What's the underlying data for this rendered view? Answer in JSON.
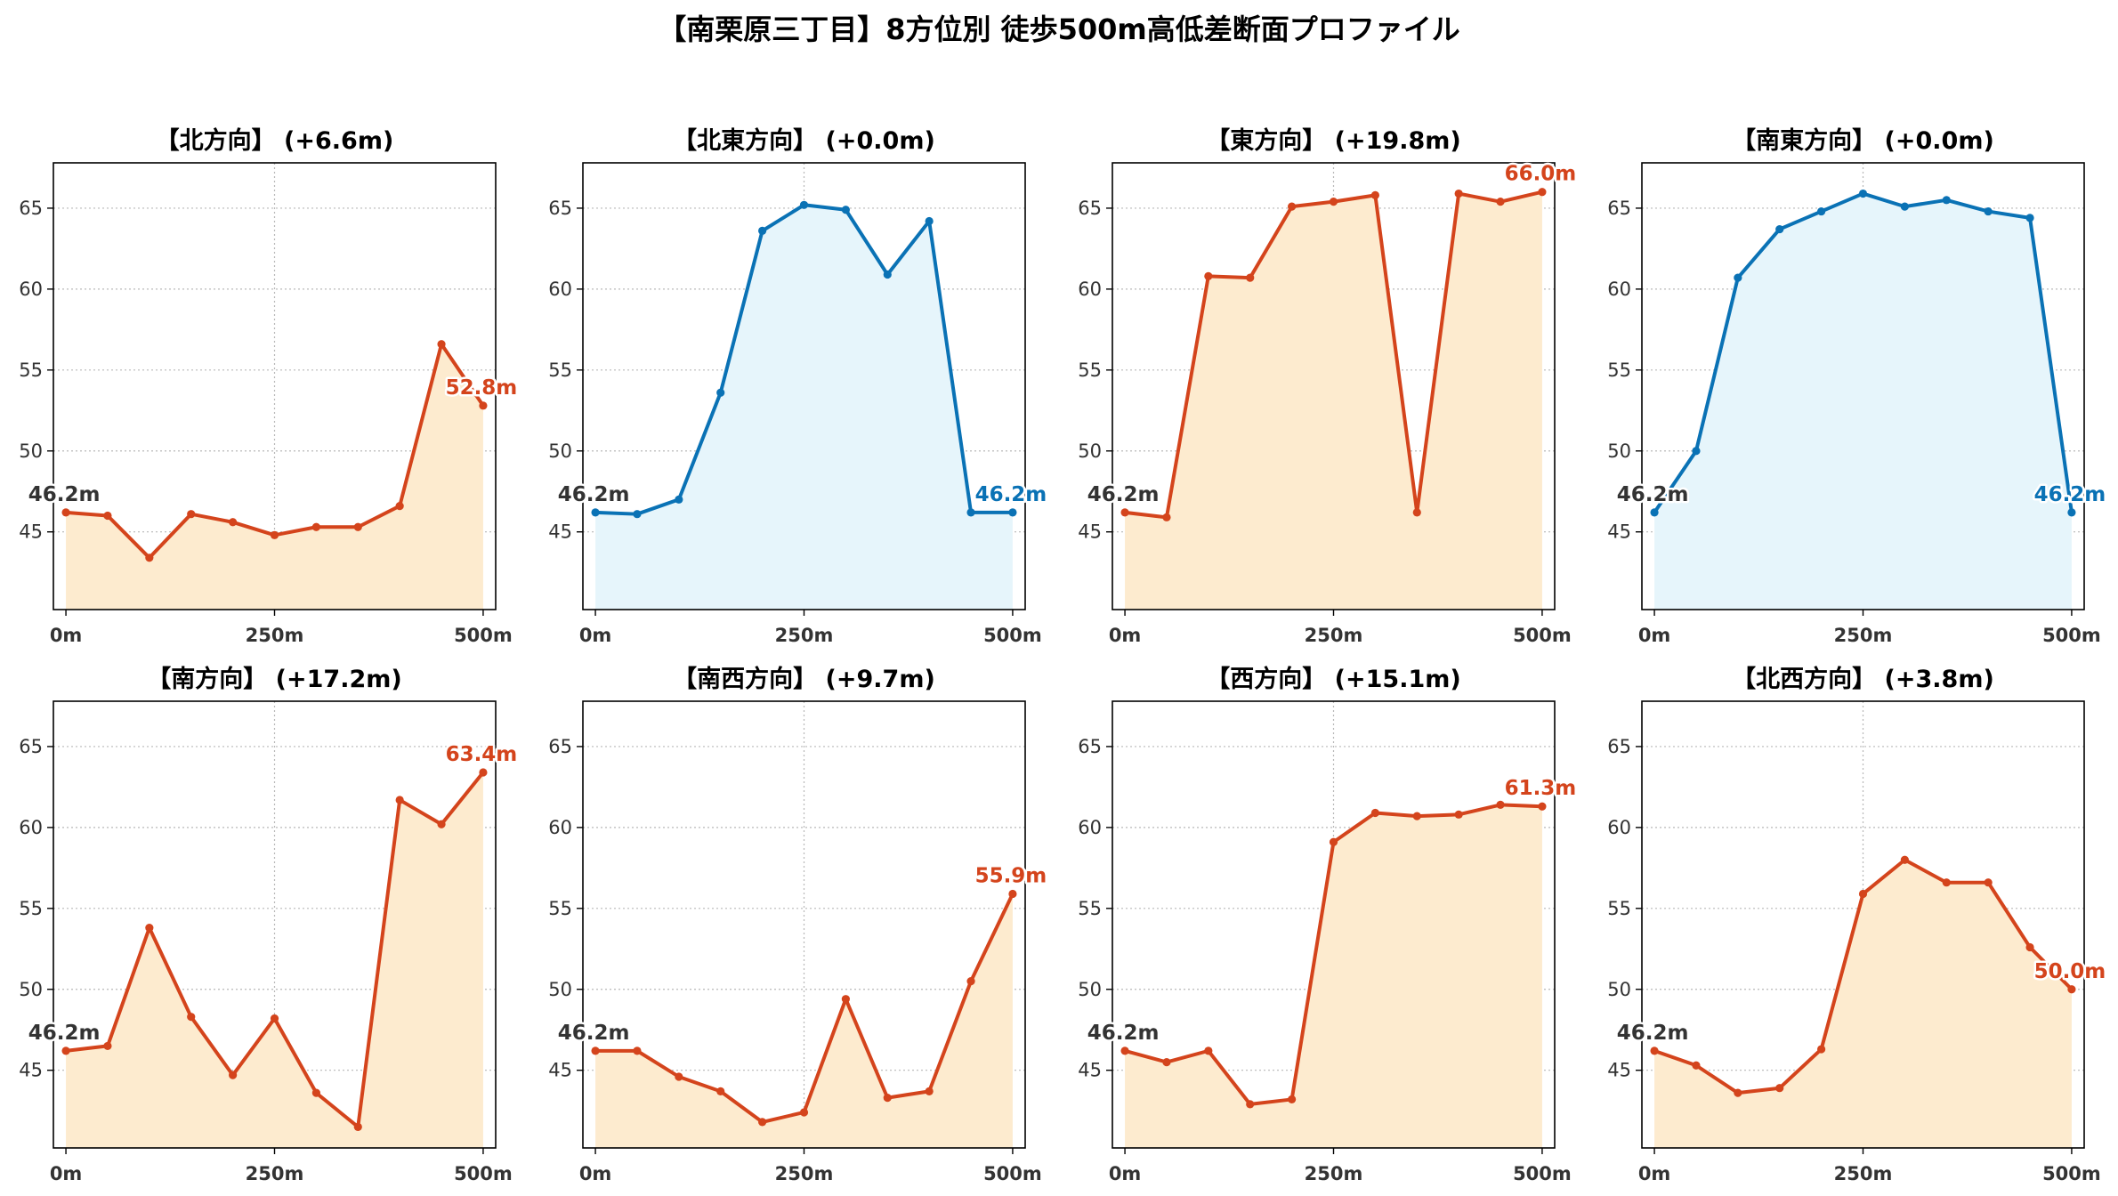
{
  "title": "【南栗原三丁目】8方位別 徒歩500m高低差断面プロファイル",
  "colors": {
    "rise_line": "#d4441c",
    "rise_fill": "#fdebcf",
    "flat_line": "#0a72b5",
    "flat_fill": "#e6f5fb",
    "start_label": "#333333",
    "axis": "#000000",
    "grid": "#b8b8b8",
    "tick_text": "#333333"
  },
  "chart_data": [
    {
      "type": "area",
      "title": "【北方向】 (+6.6m)",
      "x": [
        0,
        50,
        100,
        150,
        200,
        250,
        300,
        350,
        400,
        450,
        500
      ],
      "values": [
        46.2,
        46.0,
        43.4,
        46.1,
        45.6,
        44.8,
        45.3,
        45.3,
        46.6,
        56.6,
        52.8
      ],
      "start_label": "46.2m",
      "end_label": "52.8m",
      "style": "rise",
      "xticks": [
        "0m",
        "250m",
        "500m"
      ],
      "yticks": [
        45,
        50,
        55,
        60,
        65
      ],
      "ylim": [
        40.2,
        67.8
      ],
      "xlim": [
        -15,
        515
      ],
      "grid": true
    },
    {
      "type": "area",
      "title": "【北東方向】 (+0.0m)",
      "x": [
        0,
        50,
        100,
        150,
        200,
        250,
        300,
        350,
        400,
        450,
        500
      ],
      "values": [
        46.2,
        46.1,
        47.0,
        53.6,
        63.6,
        65.2,
        64.9,
        60.9,
        64.2,
        46.2,
        46.2
      ],
      "start_label": "46.2m",
      "end_label": "46.2m",
      "style": "flat",
      "xticks": [
        "0m",
        "250m",
        "500m"
      ],
      "yticks": [
        45,
        50,
        55,
        60,
        65
      ],
      "ylim": [
        40.2,
        67.8
      ],
      "xlim": [
        -15,
        515
      ],
      "grid": true
    },
    {
      "type": "area",
      "title": "【東方向】 (+19.8m)",
      "x": [
        0,
        50,
        100,
        150,
        200,
        250,
        300,
        350,
        400,
        450,
        500
      ],
      "values": [
        46.2,
        45.9,
        60.8,
        60.7,
        65.1,
        65.4,
        65.8,
        46.2,
        65.9,
        65.4,
        66.0
      ],
      "start_label": "46.2m",
      "end_label": "66.0m",
      "style": "rise",
      "xticks": [
        "0m",
        "250m",
        "500m"
      ],
      "yticks": [
        45,
        50,
        55,
        60,
        65
      ],
      "ylim": [
        40.2,
        67.8
      ],
      "xlim": [
        -15,
        515
      ],
      "grid": true
    },
    {
      "type": "area",
      "title": "【南東方向】 (+0.0m)",
      "x": [
        0,
        50,
        100,
        150,
        200,
        250,
        300,
        350,
        400,
        450,
        500
      ],
      "values": [
        46.2,
        50.0,
        60.7,
        63.7,
        64.8,
        65.9,
        65.1,
        65.5,
        64.8,
        64.4,
        46.2
      ],
      "start_label": "46.2m",
      "end_label": "46.2m",
      "style": "flat",
      "xticks": [
        "0m",
        "250m",
        "500m"
      ],
      "yticks": [
        45,
        50,
        55,
        60,
        65
      ],
      "ylim": [
        40.2,
        67.8
      ],
      "xlim": [
        -15,
        515
      ],
      "grid": true
    },
    {
      "type": "area",
      "title": "【南方向】 (+17.2m)",
      "x": [
        0,
        50,
        100,
        150,
        200,
        250,
        300,
        350,
        400,
        450,
        500
      ],
      "values": [
        46.2,
        46.5,
        53.8,
        48.3,
        44.7,
        48.2,
        43.6,
        41.5,
        61.7,
        60.2,
        63.4
      ],
      "start_label": "46.2m",
      "end_label": "63.4m",
      "style": "rise",
      "xticks": [
        "0m",
        "250m",
        "500m"
      ],
      "yticks": [
        45,
        50,
        55,
        60,
        65
      ],
      "ylim": [
        40.2,
        67.8
      ],
      "xlim": [
        -15,
        515
      ],
      "grid": true
    },
    {
      "type": "area",
      "title": "【南西方向】 (+9.7m)",
      "x": [
        0,
        50,
        100,
        150,
        200,
        250,
        300,
        350,
        400,
        450,
        500
      ],
      "values": [
        46.2,
        46.2,
        44.6,
        43.7,
        41.8,
        42.4,
        49.4,
        43.3,
        43.7,
        50.5,
        55.9
      ],
      "start_label": "46.2m",
      "end_label": "55.9m",
      "style": "rise",
      "xticks": [
        "0m",
        "250m",
        "500m"
      ],
      "yticks": [
        45,
        50,
        55,
        60,
        65
      ],
      "ylim": [
        40.2,
        67.8
      ],
      "xlim": [
        -15,
        515
      ],
      "grid": true
    },
    {
      "type": "area",
      "title": "【西方向】 (+15.1m)",
      "x": [
        0,
        50,
        100,
        150,
        200,
        250,
        300,
        350,
        400,
        450,
        500
      ],
      "values": [
        46.2,
        45.5,
        46.2,
        42.9,
        43.2,
        59.1,
        60.9,
        60.7,
        60.8,
        61.4,
        61.3
      ],
      "start_label": "46.2m",
      "end_label": "61.3m",
      "style": "rise",
      "xticks": [
        "0m",
        "250m",
        "500m"
      ],
      "yticks": [
        45,
        50,
        55,
        60,
        65
      ],
      "ylim": [
        40.2,
        67.8
      ],
      "xlim": [
        -15,
        515
      ],
      "grid": true
    },
    {
      "type": "area",
      "title": "【北西方向】 (+3.8m)",
      "x": [
        0,
        50,
        100,
        150,
        200,
        250,
        300,
        350,
        400,
        450,
        500
      ],
      "values": [
        46.2,
        45.3,
        43.6,
        43.9,
        46.3,
        55.9,
        58.0,
        56.6,
        56.6,
        52.6,
        50.0
      ],
      "start_label": "46.2m",
      "end_label": "50.0m",
      "style": "rise",
      "xticks": [
        "0m",
        "250m",
        "500m"
      ],
      "yticks": [
        45,
        50,
        55,
        60,
        65
      ],
      "ylim": [
        40.2,
        67.8
      ],
      "xlim": [
        -15,
        515
      ],
      "grid": true
    }
  ]
}
